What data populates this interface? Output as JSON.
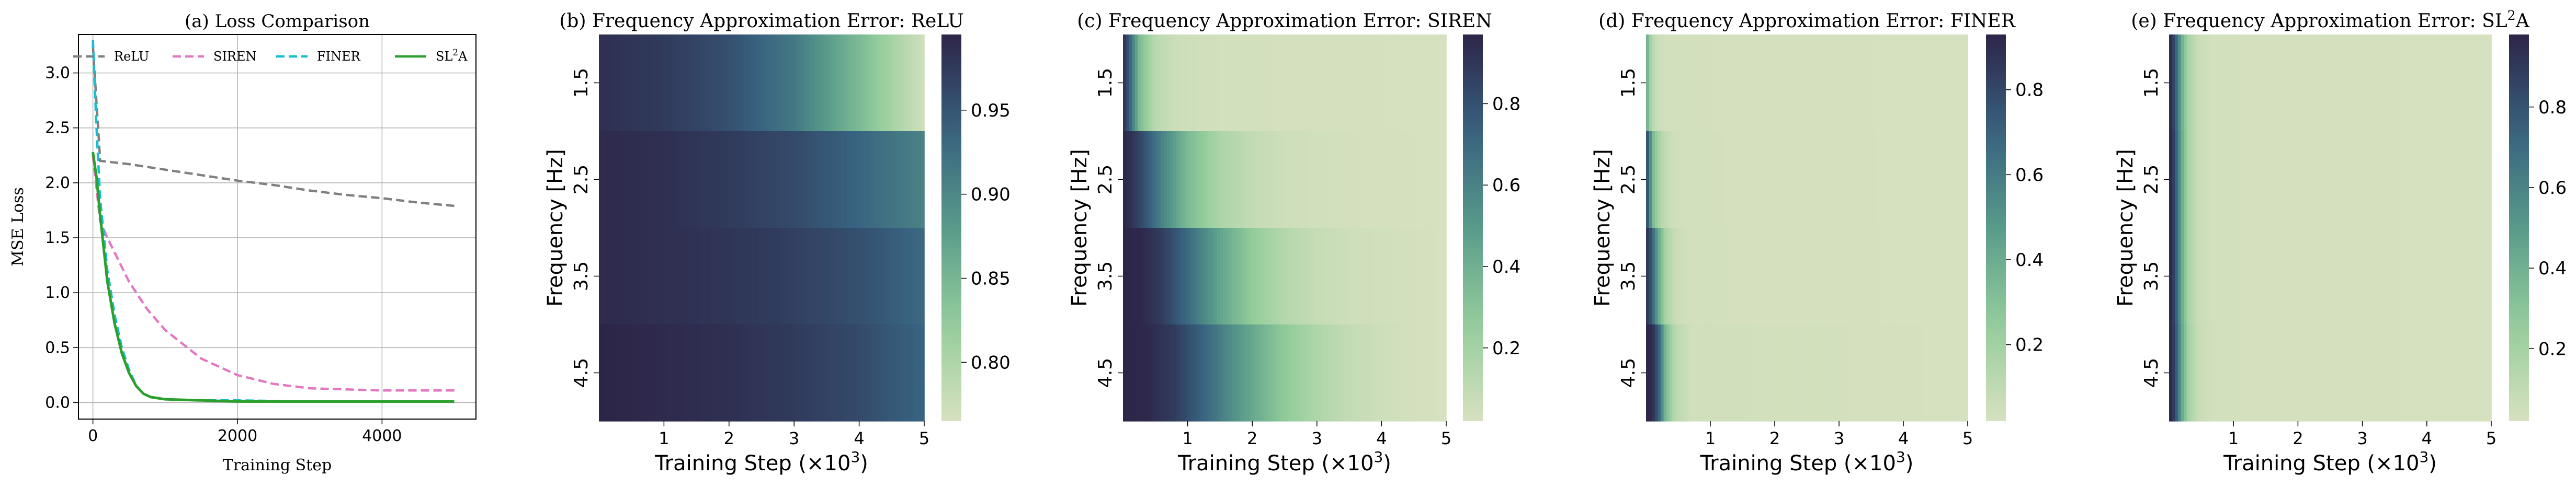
{
  "chart_data": [
    {
      "type": "line",
      "title": "(a) Loss Comparison",
      "xlabel": "Training Step",
      "ylabel": "MSE Loss",
      "xlim": [
        -200,
        5300
      ],
      "ylim": [
        -0.15,
        3.35
      ],
      "xticks": [
        "0",
        "2000",
        "4000"
      ],
      "yticks": [
        "0.0",
        "0.5",
        "1.0",
        "1.5",
        "2.0",
        "2.5",
        "3.0"
      ],
      "grid": true,
      "legend_position": "top",
      "series": [
        {
          "name": "ReLU",
          "color": "#808080",
          "dash": "dashed",
          "x": [
            0,
            100,
            500,
            1000,
            1500,
            2000,
            2500,
            3000,
            3500,
            4000,
            4500,
            5000
          ],
          "y": [
            3.25,
            2.2,
            2.17,
            2.12,
            2.07,
            2.02,
            1.98,
            1.93,
            1.89,
            1.86,
            1.82,
            1.79
          ]
        },
        {
          "name": "SIREN",
          "color": "#e377c2",
          "dash": "dashed",
          "x": [
            0,
            100,
            200,
            500,
            750,
            1000,
            1500,
            2000,
            2500,
            3000,
            3500,
            4000,
            4500,
            5000
          ],
          "y": [
            2.25,
            1.65,
            1.5,
            1.1,
            0.85,
            0.66,
            0.4,
            0.25,
            0.17,
            0.13,
            0.12,
            0.11,
            0.11,
            0.11
          ]
        },
        {
          "name": "FINER",
          "color": "#17becf",
          "dash": "dashed",
          "x": [
            0,
            50,
            100,
            200,
            300,
            400,
            500,
            600,
            700,
            800,
            1000,
            1500,
            2000,
            3000,
            4000,
            5000
          ],
          "y": [
            3.3,
            2.5,
            1.85,
            1.2,
            0.8,
            0.5,
            0.3,
            0.15,
            0.08,
            0.05,
            0.03,
            0.02,
            0.02,
            0.01,
            0.01,
            0.01
          ]
        },
        {
          "name": "SL²A",
          "color": "#2ca02c",
          "dash": "solid",
          "x": [
            0,
            50,
            100,
            200,
            300,
            400,
            500,
            600,
            700,
            800,
            1000,
            1500,
            2000,
            3000,
            4000,
            5000
          ],
          "y": [
            2.28,
            2.05,
            1.7,
            1.1,
            0.72,
            0.45,
            0.27,
            0.15,
            0.08,
            0.05,
            0.03,
            0.02,
            0.01,
            0.01,
            0.01,
            0.01
          ]
        }
      ]
    },
    {
      "type": "heatmap",
      "title": "(b) Frequency Approximation Error: ReLU",
      "xlabel": "Training Step (×10³)",
      "ylabel": "Frequency [Hz]",
      "rows": [
        "1.5",
        "2.5",
        "3.5",
        "4.5"
      ],
      "x_range": [
        0,
        5
      ],
      "xticks": [
        "1",
        "2",
        "3",
        "4",
        "5"
      ],
      "colorbar": {
        "min": 0.765,
        "max": 0.995,
        "ticks": [
          "0.80",
          "0.85",
          "0.90",
          "0.95"
        ],
        "tick_values": [
          0.8,
          0.85,
          0.9,
          0.95
        ]
      },
      "profiles": [
        {
          "x": [
            0,
            1,
            2,
            3,
            4,
            5
          ],
          "v": [
            0.985,
            0.975,
            0.955,
            0.915,
            0.845,
            0.77
          ]
        },
        {
          "x": [
            0,
            1,
            2,
            3,
            4,
            5
          ],
          "v": [
            0.99,
            0.985,
            0.975,
            0.96,
            0.935,
            0.905
          ]
        },
        {
          "x": [
            0,
            1,
            2,
            3,
            4,
            5
          ],
          "v": [
            0.99,
            0.985,
            0.98,
            0.97,
            0.955,
            0.93
          ]
        },
        {
          "x": [
            0,
            1,
            2,
            3,
            4,
            5
          ],
          "v": [
            0.995,
            0.99,
            0.985,
            0.975,
            0.96,
            0.935
          ]
        }
      ]
    },
    {
      "type": "heatmap",
      "title": "(c) Frequency Approximation Error: SIREN",
      "xlabel": "Training Step (×10³)",
      "ylabel": "Frequency [Hz]",
      "rows": [
        "1.5",
        "2.5",
        "3.5",
        "4.5"
      ],
      "x_range": [
        0,
        5
      ],
      "xticks": [
        "1",
        "2",
        "3",
        "4",
        "5"
      ],
      "colorbar": {
        "min": 0.02,
        "max": 0.97,
        "ticks": [
          "0.2",
          "0.4",
          "0.6",
          "0.8"
        ],
        "tick_values": [
          0.2,
          0.4,
          0.6,
          0.8
        ]
      },
      "profiles": [
        {
          "x": [
            0,
            0.1,
            0.25,
            0.5,
            0.8,
            1.2,
            2,
            5
          ],
          "v": [
            0.95,
            0.75,
            0.35,
            0.12,
            0.06,
            0.04,
            0.03,
            0.02
          ]
        },
        {
          "x": [
            0,
            0.1,
            0.3,
            0.6,
            1.0,
            1.5,
            2.0,
            2.5,
            3.5,
            5
          ],
          "v": [
            0.96,
            0.93,
            0.82,
            0.6,
            0.35,
            0.17,
            0.09,
            0.05,
            0.03,
            0.02
          ]
        },
        {
          "x": [
            0,
            0.3,
            0.6,
            1.0,
            1.5,
            2.0,
            2.5,
            3.0,
            3.5,
            4.5,
            5
          ],
          "v": [
            0.97,
            0.95,
            0.88,
            0.7,
            0.45,
            0.26,
            0.14,
            0.08,
            0.05,
            0.03,
            0.02
          ]
        },
        {
          "x": [
            0,
            0.4,
            0.8,
            1.2,
            1.8,
            2.4,
            3.0,
            3.5,
            4.0,
            4.5,
            5
          ],
          "v": [
            0.97,
            0.95,
            0.88,
            0.74,
            0.5,
            0.3,
            0.16,
            0.09,
            0.05,
            0.03,
            0.02
          ]
        }
      ]
    },
    {
      "type": "heatmap",
      "title": "(d) Frequency Approximation Error: FINER",
      "xlabel": "Training Step (×10³)",
      "ylabel": "Frequency [Hz]",
      "rows": [
        "1.5",
        "2.5",
        "3.5",
        "4.5"
      ],
      "x_range": [
        0,
        5
      ],
      "xticks": [
        "1",
        "2",
        "3",
        "4",
        "5"
      ],
      "colorbar": {
        "min": 0.02,
        "max": 0.93,
        "ticks": [
          "0.2",
          "0.4",
          "0.6",
          "0.8"
        ],
        "tick_values": [
          0.2,
          0.4,
          0.6,
          0.8
        ]
      },
      "profiles": [
        {
          "x": [
            0,
            0.03,
            0.1,
            0.2,
            0.35,
            5
          ],
          "v": [
            0.55,
            0.3,
            0.12,
            0.05,
            0.03,
            0.02
          ]
        },
        {
          "x": [
            0,
            0.05,
            0.12,
            0.25,
            0.4,
            0.6,
            5
          ],
          "v": [
            0.88,
            0.6,
            0.3,
            0.12,
            0.05,
            0.03,
            0.02
          ]
        },
        {
          "x": [
            0,
            0.08,
            0.18,
            0.3,
            0.45,
            0.7,
            5
          ],
          "v": [
            0.9,
            0.75,
            0.45,
            0.18,
            0.07,
            0.03,
            0.02
          ]
        },
        {
          "x": [
            0,
            0.1,
            0.2,
            0.3,
            0.45,
            0.7,
            5
          ],
          "v": [
            0.93,
            0.9,
            0.7,
            0.35,
            0.12,
            0.04,
            0.02
          ]
        }
      ]
    },
    {
      "type": "heatmap",
      "title": "(e) Frequency Approximation Error: SL²A",
      "xlabel": "Training Step (×10³)",
      "ylabel": "Frequency [Hz]",
      "rows": [
        "1.5",
        "2.5",
        "3.5",
        "4.5"
      ],
      "x_range": [
        0,
        5
      ],
      "xticks": [
        "1",
        "2",
        "3",
        "4",
        "5"
      ],
      "colorbar": {
        "min": 0.02,
        "max": 0.98,
        "ticks": [
          "0.2",
          "0.4",
          "0.6",
          "0.8"
        ],
        "tick_values": [
          0.2,
          0.4,
          0.6,
          0.8
        ]
      },
      "profiles": [
        {
          "x": [
            0,
            0.05,
            0.12,
            0.2,
            0.3,
            0.45,
            0.7,
            5
          ],
          "v": [
            0.97,
            0.92,
            0.7,
            0.4,
            0.18,
            0.07,
            0.03,
            0.02
          ]
        },
        {
          "x": [
            0,
            0.05,
            0.12,
            0.2,
            0.3,
            0.45,
            0.7,
            5
          ],
          "v": [
            0.98,
            0.93,
            0.72,
            0.42,
            0.18,
            0.07,
            0.03,
            0.02
          ]
        },
        {
          "x": [
            0,
            0.05,
            0.12,
            0.2,
            0.3,
            0.45,
            0.7,
            5
          ],
          "v": [
            0.98,
            0.93,
            0.72,
            0.42,
            0.18,
            0.07,
            0.03,
            0.02
          ]
        },
        {
          "x": [
            0,
            0.05,
            0.12,
            0.2,
            0.3,
            0.45,
            0.7,
            5
          ],
          "v": [
            0.98,
            0.94,
            0.74,
            0.44,
            0.2,
            0.08,
            0.03,
            0.02
          ]
        }
      ]
    }
  ]
}
